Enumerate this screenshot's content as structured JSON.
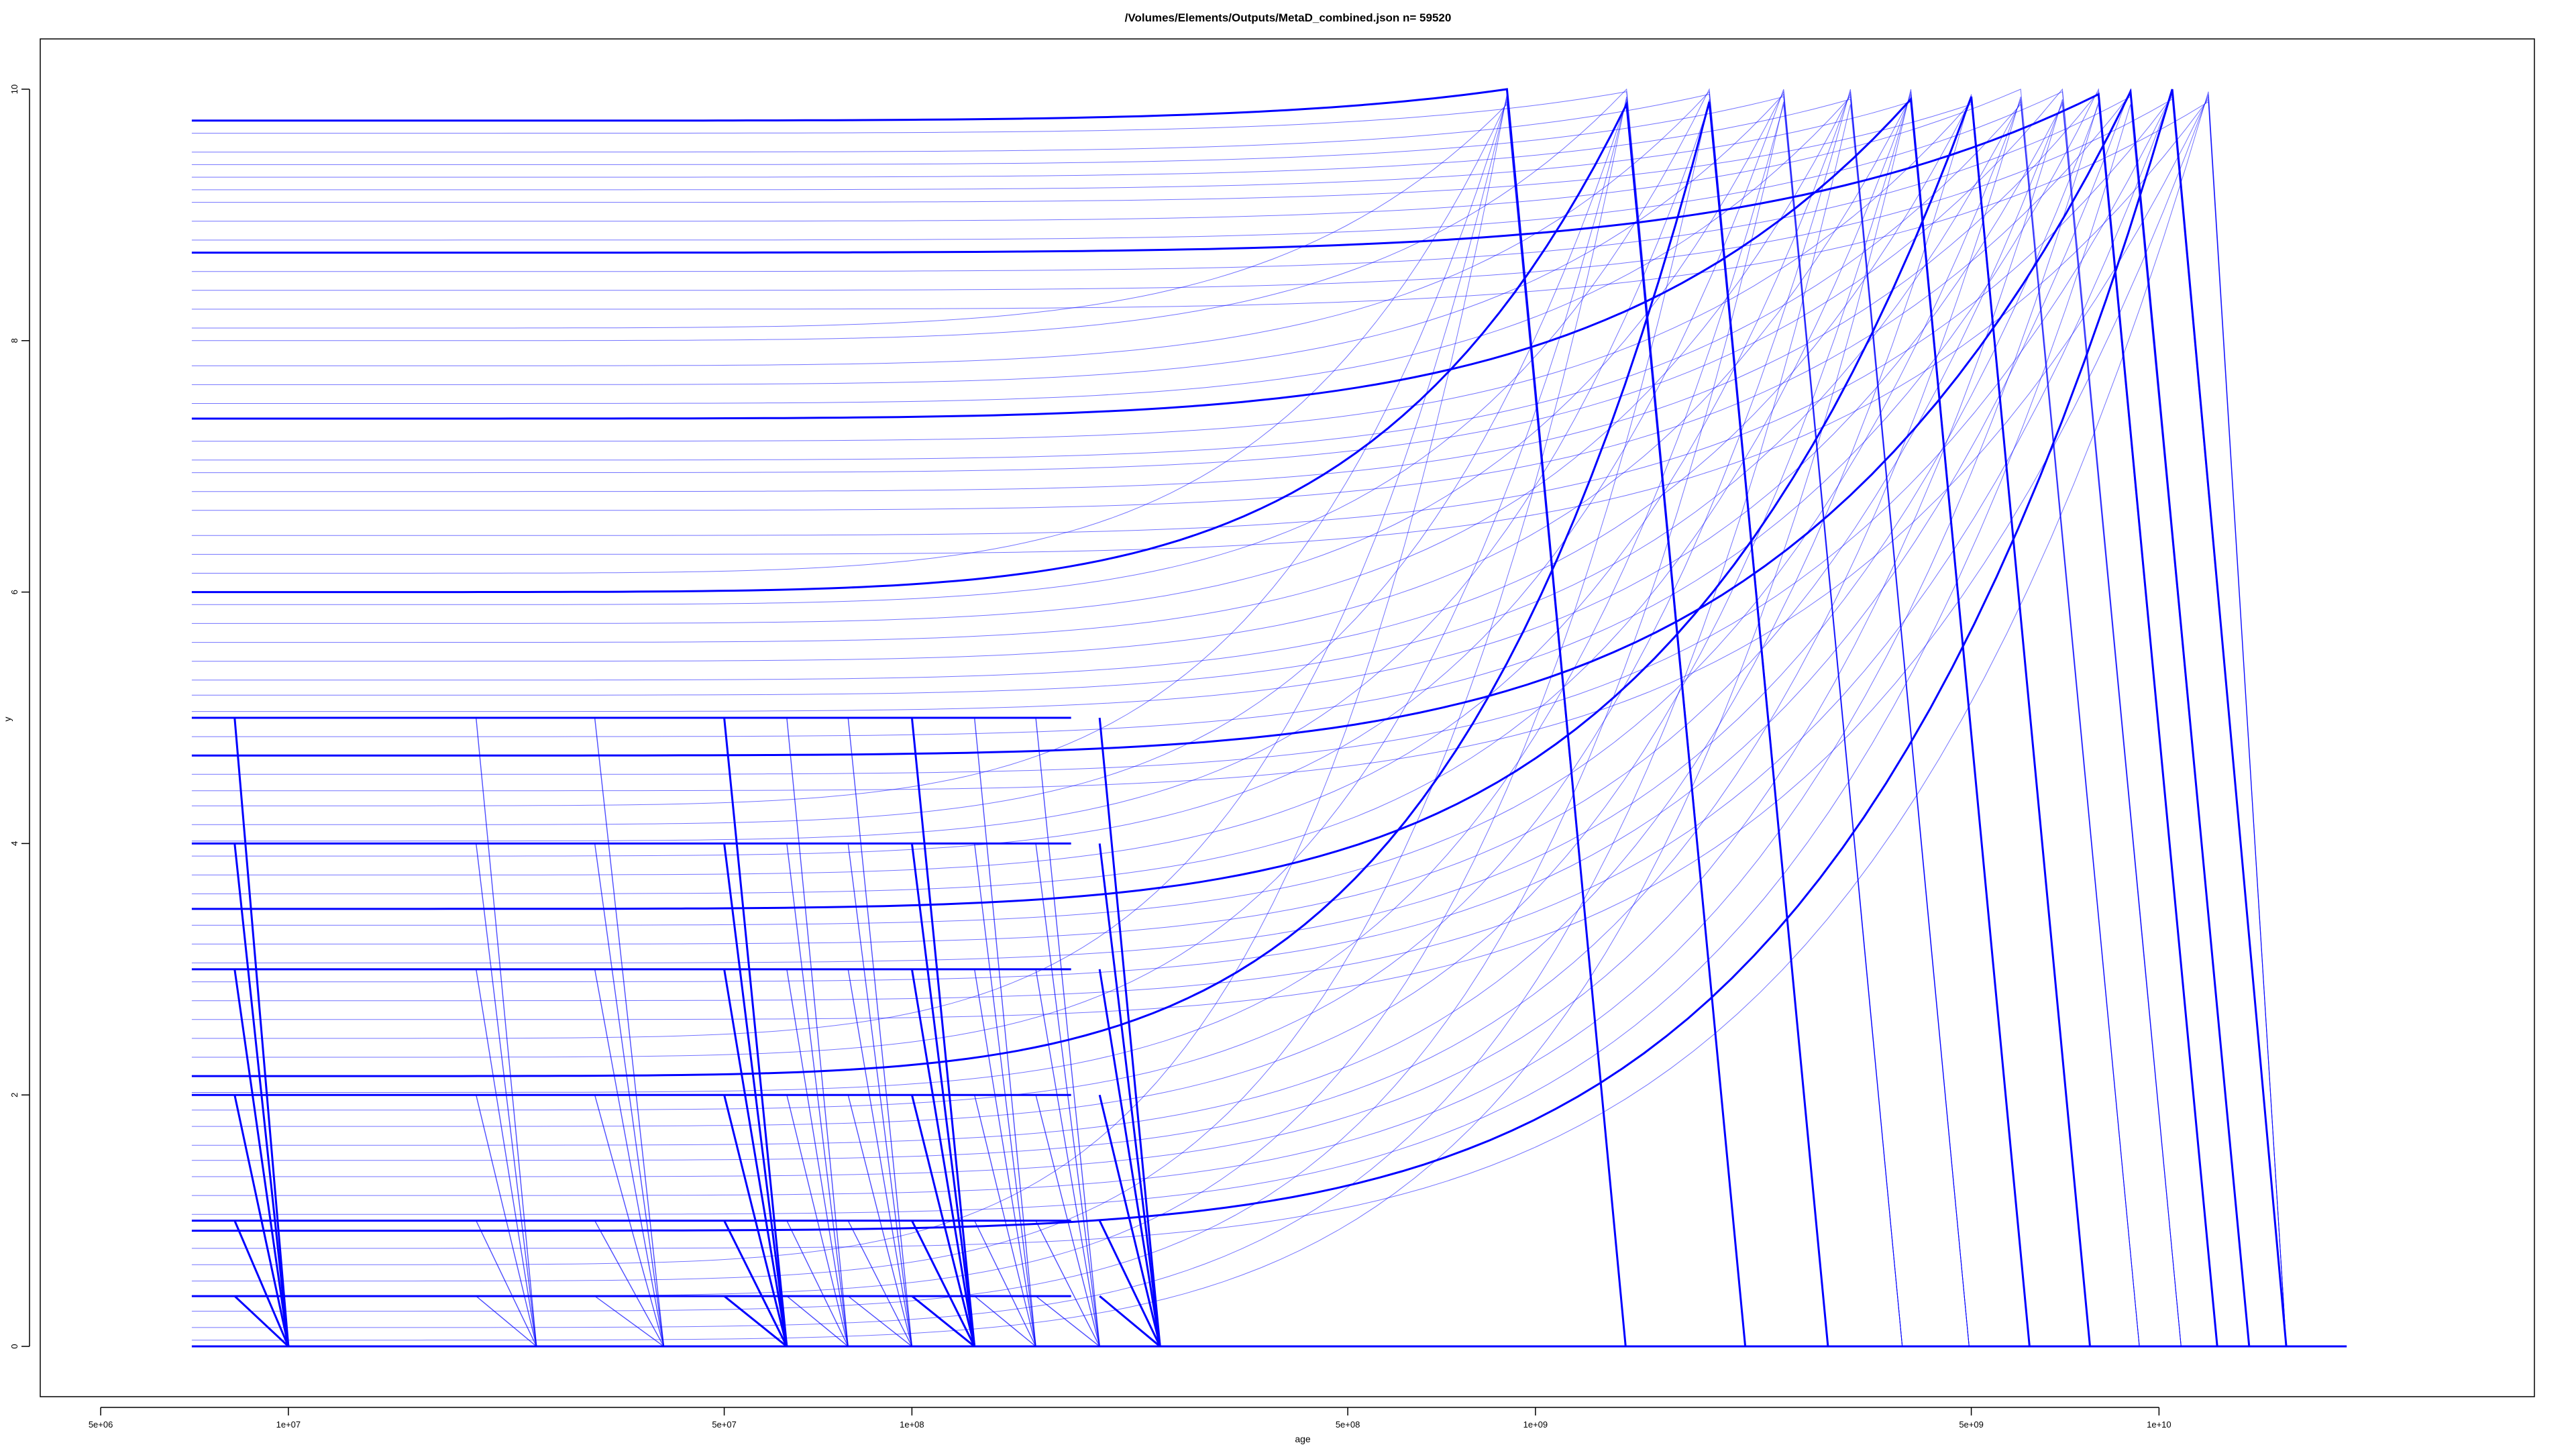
{
  "chart_data": {
    "type": "line",
    "title": "/Volumes/Elements/Outputs/MetaD_combined.json n= 59520",
    "xlabel": "age",
    "ylabel": "y",
    "x_scale": "log",
    "xlim": [
      4000000,
      40000000000
    ],
    "ylim": [
      -0.4,
      10.4
    ],
    "x_ticks": [
      {
        "value": 5000000,
        "label": "5e+06"
      },
      {
        "value": 10000000,
        "label": "1e+07"
      },
      {
        "value": 50000000,
        "label": "5e+07"
      },
      {
        "value": 100000000,
        "label": "1e+08"
      },
      {
        "value": 500000000,
        "label": "5e+08"
      },
      {
        "value": 1000000000,
        "label": "1e+09"
      },
      {
        "value": 5000000000,
        "label": "5e+09"
      },
      {
        "value": 10000000000,
        "label": "1e+10"
      }
    ],
    "y_ticks": [
      {
        "value": 0,
        "label": "0"
      },
      {
        "value": 2,
        "label": "2"
      },
      {
        "value": 4,
        "label": "4"
      },
      {
        "value": 6,
        "label": "6"
      },
      {
        "value": 8,
        "label": "8"
      },
      {
        "value": 10,
        "label": "10"
      }
    ],
    "line_color": "#0000ff",
    "grid": false,
    "series_groups": {
      "plateau_curves": {
        "description_free": true,
        "x_start": 7000000,
        "levels": [
          9.75,
          9.65,
          9.5,
          9.4,
          9.3,
          9.2,
          9.1,
          8.95,
          8.8,
          8.7,
          8.55,
          8.4,
          8.25,
          8.1,
          8.0,
          7.8,
          7.65,
          7.5,
          7.38,
          7.2,
          7.05,
          6.95,
          6.8,
          6.65,
          6.45,
          6.3,
          6.15,
          6.0,
          5.9,
          5.75,
          5.6,
          5.45,
          5.3,
          5.18,
          5.05,
          4.85,
          4.7,
          4.55,
          4.42,
          4.3,
          4.15,
          4.02,
          3.9,
          3.75,
          3.6,
          3.48,
          3.35,
          3.2,
          3.05,
          2.9,
          2.75,
          2.6,
          2.45,
          2.3,
          2.15,
          2.02,
          1.88,
          1.75,
          1.6,
          1.48,
          1.35,
          1.2,
          1.05,
          0.92,
          0.78,
          0.65,
          0.52,
          0.4,
          0.28,
          0.15,
          0.05
        ],
        "peak_ages": [
          900000000,
          1400000000,
          1900000000,
          2500000000,
          3200000000,
          4000000000,
          5000000000,
          6000000000,
          7000000000,
          8000000000,
          9000000000,
          10500000000,
          12000000000
        ],
        "end_age": 16000000000
      },
      "step_curves": {
        "x_start": 7000000,
        "levels": [
          5.0,
          4.0,
          3.0,
          2.0,
          1.0,
          0.4
        ],
        "drop_start_ages": [
          8200000,
          20000000,
          31000000,
          50000000,
          63000000,
          79000000,
          100000000,
          126000000,
          158000000,
          200000000
        ],
        "drop_end_ages": [
          10000000,
          25000000,
          40000000,
          63000000,
          79000000,
          100000000,
          126000000,
          158000000,
          200000000,
          250000000
        ]
      },
      "baseline": {
        "x": [
          7000000,
          20000000000
        ],
        "y": [
          0,
          0
        ]
      }
    }
  }
}
